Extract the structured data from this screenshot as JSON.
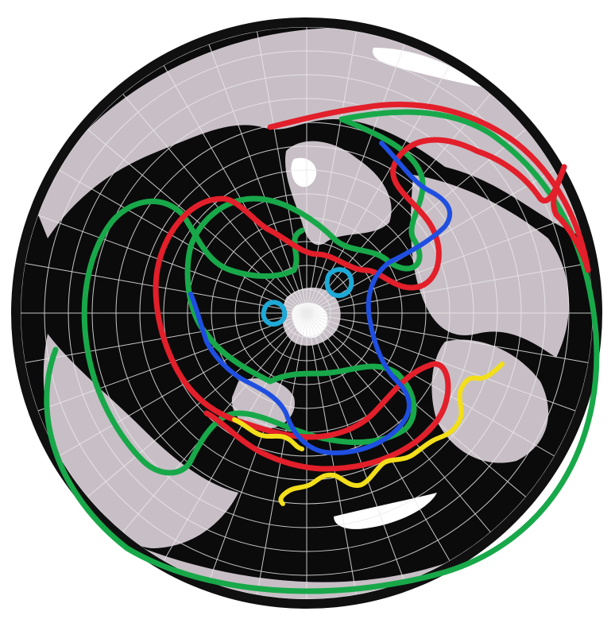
{
  "map": {
    "projection": "south-polar",
    "background_color": "#ffffff",
    "ocean_color": "#0b0b0b",
    "land_color": "#c8bfc6",
    "ice_color": "#ffffff",
    "graticule_color": "#e8e8e8",
    "rim_color": "#101010"
  },
  "paths": [
    {
      "name": "green",
      "color": "#18a84a"
    },
    {
      "name": "red",
      "color": "#e21f2a"
    },
    {
      "name": "blue",
      "color": "#1f4fe0"
    },
    {
      "name": "yellow",
      "color": "#f2de1a"
    },
    {
      "name": "cyan",
      "color": "#1ea9d6"
    }
  ]
}
